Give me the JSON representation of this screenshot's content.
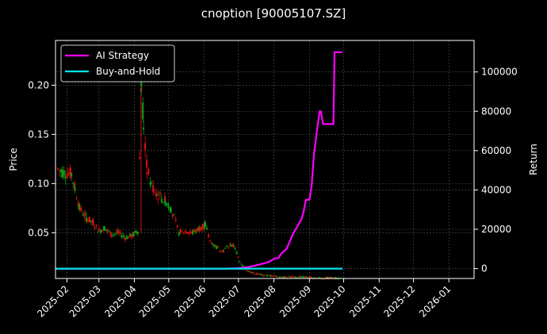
{
  "chart_data": {
    "type": "candlestick+line",
    "title": "cnoption [90005107.SZ]",
    "xlabel": "",
    "ylabel_left": "Price",
    "ylabel_right": "Return",
    "x_ticks": [
      "2025-02",
      "2025-03",
      "2025-04",
      "2025-05",
      "2025-06",
      "2025-07",
      "2025-08",
      "2025-09",
      "2025-10",
      "2025-11",
      "2025-12",
      "2026-01"
    ],
    "y_left_ticks": [
      "0.05",
      "0.10",
      "0.15",
      "0.20"
    ],
    "y_left_range": [
      0.0035,
      0.2455
    ],
    "y_right_ticks": [
      "0",
      "20000",
      "40000",
      "60000",
      "80000",
      "100000"
    ],
    "y_right_range": [
      -5000,
      116000
    ],
    "x_range": [
      "2025-01-22",
      "2026-01-23"
    ],
    "grid": true,
    "legend_position": "upper left",
    "legend": [
      {
        "label": "AI Strategy",
        "color": "#ff00ff"
      },
      {
        "label": "Buy-and-Hold",
        "color": "#00e5ee"
      }
    ],
    "series": [
      {
        "name": "AI Strategy",
        "axis": "right",
        "color": "#ff00ff",
        "points": [
          [
            "2025-01-22",
            0
          ],
          [
            "2025-06-20",
            0
          ],
          [
            "2025-07-01",
            200
          ],
          [
            "2025-07-10",
            800
          ],
          [
            "2025-07-15",
            1500
          ],
          [
            "2025-07-22",
            2500
          ],
          [
            "2025-07-28",
            3500
          ],
          [
            "2025-08-01",
            5000
          ],
          [
            "2025-08-05",
            5500
          ],
          [
            "2025-08-08",
            8000
          ],
          [
            "2025-08-12",
            10000
          ],
          [
            "2025-08-15",
            14000
          ],
          [
            "2025-08-18",
            18000
          ],
          [
            "2025-08-20",
            20000
          ],
          [
            "2025-08-22",
            22000
          ],
          [
            "2025-08-25",
            25000
          ],
          [
            "2025-08-27",
            29000
          ],
          [
            "2025-08-29",
            35000
          ],
          [
            "2025-09-01",
            35000
          ],
          [
            "2025-09-03",
            42000
          ],
          [
            "2025-09-05",
            58000
          ],
          [
            "2025-09-08",
            72000
          ],
          [
            "2025-09-10",
            80000
          ],
          [
            "2025-09-11",
            80000
          ],
          [
            "2025-09-13",
            73500
          ],
          [
            "2025-09-22",
            73500
          ],
          [
            "2025-09-23",
            110000
          ],
          [
            "2025-09-30",
            110000
          ]
        ]
      },
      {
        "name": "Buy-and-Hold",
        "axis": "right",
        "color": "#00e5ee",
        "points": [
          [
            "2025-01-22",
            0
          ],
          [
            "2025-09-30",
            0
          ]
        ]
      }
    ],
    "candles_note": "Daily OHLC candles, red = up, green = down",
    "price_path": [
      [
        "2025-01-24",
        0.115
      ],
      [
        "2025-01-28",
        0.112
      ],
      [
        "2025-02-05",
        0.11
      ],
      [
        "2025-02-08",
        0.095
      ],
      [
        "2025-02-12",
        0.075
      ],
      [
        "2025-02-18",
        0.065
      ],
      [
        "2025-02-24",
        0.06
      ],
      [
        "2025-03-01",
        0.052
      ],
      [
        "2025-03-06",
        0.055
      ],
      [
        "2025-03-12",
        0.048
      ],
      [
        "2025-03-18",
        0.05
      ],
      [
        "2025-03-24",
        0.045
      ],
      [
        "2025-03-30",
        0.047
      ],
      [
        "2025-04-04",
        0.052
      ],
      [
        "2025-04-07",
        0.21
      ],
      [
        "2025-04-09",
        0.16
      ],
      [
        "2025-04-12",
        0.115
      ],
      [
        "2025-04-16",
        0.098
      ],
      [
        "2025-04-22",
        0.088
      ],
      [
        "2025-04-28",
        0.082
      ],
      [
        "2025-05-03",
        0.075
      ],
      [
        "2025-05-10",
        0.05
      ],
      [
        "2025-05-16",
        0.052
      ],
      [
        "2025-05-22",
        0.05
      ],
      [
        "2025-05-28",
        0.055
      ],
      [
        "2025-06-02",
        0.058
      ],
      [
        "2025-06-06",
        0.042
      ],
      [
        "2025-06-12",
        0.035
      ],
      [
        "2025-06-18",
        0.032
      ],
      [
        "2025-06-24",
        0.038
      ],
      [
        "2025-06-28",
        0.035
      ],
      [
        "2025-07-02",
        0.02
      ],
      [
        "2025-07-08",
        0.012
      ],
      [
        "2025-07-14",
        0.009
      ],
      [
        "2025-07-22",
        0.007
      ],
      [
        "2025-07-30",
        0.006
      ],
      [
        "2025-08-10",
        0.005
      ],
      [
        "2025-08-25",
        0.005
      ],
      [
        "2025-09-10",
        0.004
      ],
      [
        "2025-09-28",
        0.004
      ]
    ]
  }
}
